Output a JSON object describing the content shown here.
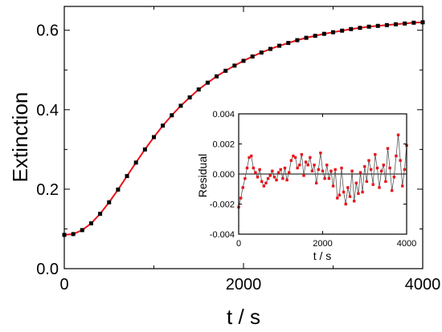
{
  "chart_data": [
    {
      "type": "scatter",
      "title": "",
      "xlabel": "t / s",
      "ylabel": "Extinction",
      "xlim": [
        0,
        4000
      ],
      "ylim": [
        0.0,
        0.66
      ],
      "xticks": [
        0,
        2000,
        4000
      ],
      "xtick_labels": [
        "0",
        "2000",
        "4000"
      ],
      "yticks": [
        0.0,
        0.2,
        0.4,
        0.6
      ],
      "ytick_labels": [
        "0.0",
        "0.2",
        "0.4",
        "0.6"
      ],
      "grid": false,
      "legend": "none",
      "series": [
        {
          "style": "black square markers (measured data)",
          "color": "#000000",
          "x": [
            0,
            100,
            200,
            300,
            400,
            500,
            600,
            700,
            800,
            900,
            1000,
            1100,
            1200,
            1300,
            1400,
            1500,
            1600,
            1700,
            1800,
            1900,
            2000,
            2100,
            2200,
            2300,
            2400,
            2500,
            2600,
            2700,
            2800,
            2900,
            3000,
            3100,
            3200,
            3300,
            3400,
            3500,
            3600,
            3700,
            3800,
            3900,
            4000
          ],
          "y": [
            0.085,
            0.087,
            0.097,
            0.114,
            0.138,
            0.167,
            0.199,
            0.233,
            0.267,
            0.3,
            0.331,
            0.36,
            0.386,
            0.41,
            0.431,
            0.451,
            0.468,
            0.484,
            0.498,
            0.511,
            0.523,
            0.534,
            0.544,
            0.553,
            0.561,
            0.568,
            0.575,
            0.581,
            0.586,
            0.591,
            0.595,
            0.599,
            0.603,
            0.606,
            0.609,
            0.611,
            0.613,
            0.615,
            0.617,
            0.619,
            0.62
          ]
        },
        {
          "style": "red line (fit)",
          "color": "#e8141b",
          "x": [
            0,
            100,
            200,
            300,
            400,
            500,
            600,
            700,
            800,
            900,
            1000,
            1100,
            1200,
            1300,
            1400,
            1500,
            1600,
            1700,
            1800,
            1900,
            2000,
            2100,
            2200,
            2300,
            2400,
            2500,
            2600,
            2700,
            2800,
            2900,
            3000,
            3100,
            3200,
            3300,
            3400,
            3500,
            3600,
            3700,
            3800,
            3900,
            4000
          ],
          "y": [
            0.085,
            0.087,
            0.097,
            0.114,
            0.138,
            0.167,
            0.199,
            0.233,
            0.267,
            0.3,
            0.331,
            0.36,
            0.386,
            0.41,
            0.431,
            0.451,
            0.468,
            0.484,
            0.498,
            0.511,
            0.523,
            0.534,
            0.544,
            0.553,
            0.561,
            0.568,
            0.575,
            0.581,
            0.586,
            0.591,
            0.595,
            0.599,
            0.603,
            0.606,
            0.609,
            0.611,
            0.613,
            0.615,
            0.617,
            0.619,
            0.62
          ]
        }
      ]
    },
    {
      "type": "line",
      "title": "",
      "xlabel": "t / s",
      "ylabel": "Residual",
      "xlim": [
        0,
        4000
      ],
      "ylim": [
        -0.004,
        0.004
      ],
      "xticks": [
        0,
        2000,
        4000
      ],
      "xtick_labels": [
        "0",
        "2000",
        "4000"
      ],
      "yticks": [
        -0.004,
        -0.002,
        0.0,
        0.002,
        0.004
      ],
      "ytick_labels": [
        "-0.004",
        "-0.002",
        "0.000",
        "0.002",
        "0.004"
      ],
      "zero_line": true,
      "grid": false,
      "legend": "none",
      "series": [
        {
          "style": "thin grey line with red square markers",
          "line_color": "#555555",
          "marker_color": "#e8141b",
          "x": [
            0,
            50,
            100,
            150,
            200,
            250,
            300,
            350,
            400,
            450,
            500,
            550,
            600,
            650,
            700,
            750,
            800,
            850,
            900,
            950,
            1000,
            1050,
            1100,
            1150,
            1200,
            1250,
            1300,
            1350,
            1400,
            1450,
            1500,
            1550,
            1600,
            1650,
            1700,
            1750,
            1800,
            1850,
            1900,
            1950,
            2000,
            2050,
            2100,
            2150,
            2200,
            2250,
            2300,
            2350,
            2400,
            2450,
            2500,
            2550,
            2600,
            2650,
            2700,
            2750,
            2800,
            2850,
            2900,
            2950,
            3000,
            3050,
            3100,
            3150,
            3200,
            3250,
            3300,
            3350,
            3400,
            3450,
            3500,
            3550,
            3600,
            3650,
            3700,
            3750,
            3800,
            3850,
            3900,
            3950,
            4000
          ],
          "y": [
            -0.0022,
            -0.0016,
            -0.0009,
            -0.0003,
            0.0004,
            0.0011,
            0.0012,
            0.0004,
            0.0001,
            -0.0002,
            0.0003,
            -0.0005,
            -0.0008,
            -0.0006,
            -0.0003,
            -0.0001,
            0.0002,
            -0.0002,
            -0.0004,
            0.0001,
            0.0003,
            -0.0003,
            0.0004,
            -0.0004,
            0.0001,
            0.0009,
            0.0012,
            0.0011,
            0.0004,
            0.0006,
            0.0013,
            -0.0001,
            0.0008,
            0.0006,
            0.0011,
            0.0002,
            0.0006,
            -0.0006,
            0.0003,
            0.0014,
            0.0002,
            -0.0003,
            0.0006,
            -0.0003,
            0.0002,
            -0.0008,
            0.0003,
            -0.0016,
            -0.0014,
            0.0004,
            -0.0012,
            -0.002,
            -0.0009,
            -0.0015,
            0.0002,
            -0.0018,
            -0.0006,
            -0.0013,
            0.0001,
            -0.0012,
            0.0005,
            -0.0005,
            0.0009,
            0.0003,
            -0.0007,
            0.0013,
            0.0004,
            -0.0009,
            0.0002,
            0.0006,
            -0.0005,
            0.0017,
            0.0004,
            -0.0011,
            -0.0002,
            0.0012,
            0.0026,
            0.0009,
            -0.0008,
            0.0003,
            0.0019
          ]
        }
      ]
    }
  ]
}
